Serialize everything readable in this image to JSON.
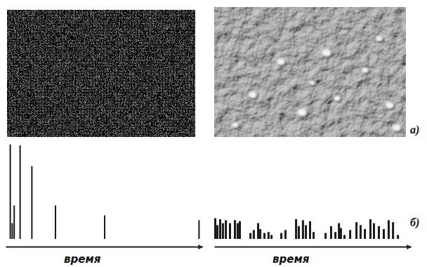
{
  "figure": {
    "panel_labels": [
      "а)",
      "б)"
    ]
  },
  "chart_data": [
    {
      "type": "bar",
      "xlabel": "время",
      "color": "#1a1a1a",
      "x": [
        2,
        3,
        4,
        7,
        13,
        25,
        50,
        98
      ],
      "values": [
        96,
        16,
        34,
        95,
        74,
        34,
        24,
        19
      ],
      "xlim": [
        0,
        100
      ],
      "ylim": [
        0,
        100
      ],
      "xticks": [],
      "yticks": [],
      "tick_labels": false
    },
    {
      "type": "bar",
      "xlabel": "время",
      "color": "#1a1a1a",
      "x": [
        0,
        1.1,
        2.5,
        3.9,
        5.4,
        7.5,
        10,
        11.4,
        12.5,
        17.9,
        19.6,
        21.8,
        22.9,
        25,
        27.1,
        28.6,
        33.6,
        35.7,
        41.1,
        42.5,
        44.6,
        46.1,
        48.2,
        50,
        56.1,
        58.9,
        61.1,
        62.9,
        63.9,
        65.7,
        68.6,
        71.8,
        73.9,
        76.1,
        78.9,
        80.7,
        83.2,
        85.7,
        88.2,
        90.4,
        92.9
      ],
      "values": [
        21,
        14,
        20,
        16,
        19,
        16,
        19,
        16,
        18,
        6,
        9,
        16,
        10,
        6,
        7,
        4,
        6,
        9,
        20,
        13,
        19,
        14,
        18,
        7,
        6,
        13,
        7,
        16,
        11,
        4,
        9,
        17,
        14,
        10,
        20,
        16,
        13,
        10,
        19,
        17,
        4
      ],
      "xlim": [
        0,
        100
      ],
      "ylim": [
        0,
        100
      ],
      "xticks": [],
      "yticks": [],
      "tick_labels": false
    }
  ]
}
